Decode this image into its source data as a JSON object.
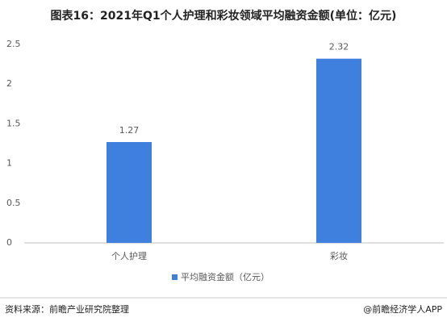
{
  "chart_data": {
    "type": "bar",
    "title": "图表16：2021年Q1个人护理和彩妆领域平均融资金额(单位：亿元)",
    "categories": [
      "个人护理",
      "彩妆"
    ],
    "series": [
      {
        "name": "平均融资金额（亿元）",
        "color": "#3f7fdd",
        "values": [
          1.27,
          2.32
        ]
      }
    ],
    "ylim": [
      0,
      2.5
    ],
    "yticks": [
      0,
      0.5,
      1,
      1.5,
      2,
      2.5
    ],
    "grid": false,
    "source": "资料来源：前瞻产业研究院整理",
    "credit": "@前瞻经济学人APP"
  }
}
